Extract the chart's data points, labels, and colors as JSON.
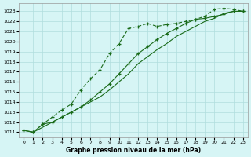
{
  "x": [
    0,
    1,
    2,
    3,
    4,
    5,
    6,
    7,
    8,
    9,
    10,
    11,
    12,
    13,
    14,
    15,
    16,
    17,
    18,
    19,
    20,
    21,
    22,
    23
  ],
  "line1": [
    1011.2,
    1011.0,
    1011.8,
    1012.5,
    1013.2,
    1013.8,
    1015.2,
    1016.3,
    1017.2,
    1018.8,
    1019.8,
    1021.3,
    1021.5,
    1021.8,
    1021.5,
    1021.7,
    1021.8,
    1022.0,
    1022.2,
    1022.5,
    1023.2,
    1023.3,
    1023.2,
    1023.0
  ],
  "line2": [
    1011.2,
    1011.0,
    1011.8,
    1012.0,
    1012.5,
    1013.0,
    1013.5,
    1014.2,
    1015.0,
    1015.8,
    1016.8,
    1017.8,
    1018.8,
    1019.5,
    1020.2,
    1020.8,
    1021.3,
    1021.8,
    1022.2,
    1022.3,
    1022.5,
    1022.7,
    1023.0,
    1023.0
  ],
  "line3": [
    1011.2,
    1011.0,
    1011.5,
    1012.0,
    1012.5,
    1013.0,
    1013.5,
    1014.0,
    1014.5,
    1015.2,
    1016.0,
    1016.8,
    1017.8,
    1018.5,
    1019.2,
    1019.8,
    1020.5,
    1021.0,
    1021.5,
    1022.0,
    1022.3,
    1022.8,
    1023.0,
    1023.0
  ],
  "bg_color": "#d6f5f5",
  "grid_color": "#b0dede",
  "line_color": "#1a6b1a",
  "xlabel": "Graphe pression niveau de la mer (hPa)",
  "ylim_min": 1010.5,
  "ylim_max": 1023.8,
  "xlim_min": -0.5,
  "xlim_max": 23.5,
  "yticks": [
    1011,
    1012,
    1013,
    1014,
    1015,
    1016,
    1017,
    1018,
    1019,
    1020,
    1021,
    1022,
    1023
  ],
  "xticks": [
    0,
    1,
    2,
    3,
    4,
    5,
    6,
    7,
    8,
    9,
    10,
    11,
    12,
    13,
    14,
    15,
    16,
    17,
    18,
    19,
    20,
    21,
    22,
    23
  ]
}
